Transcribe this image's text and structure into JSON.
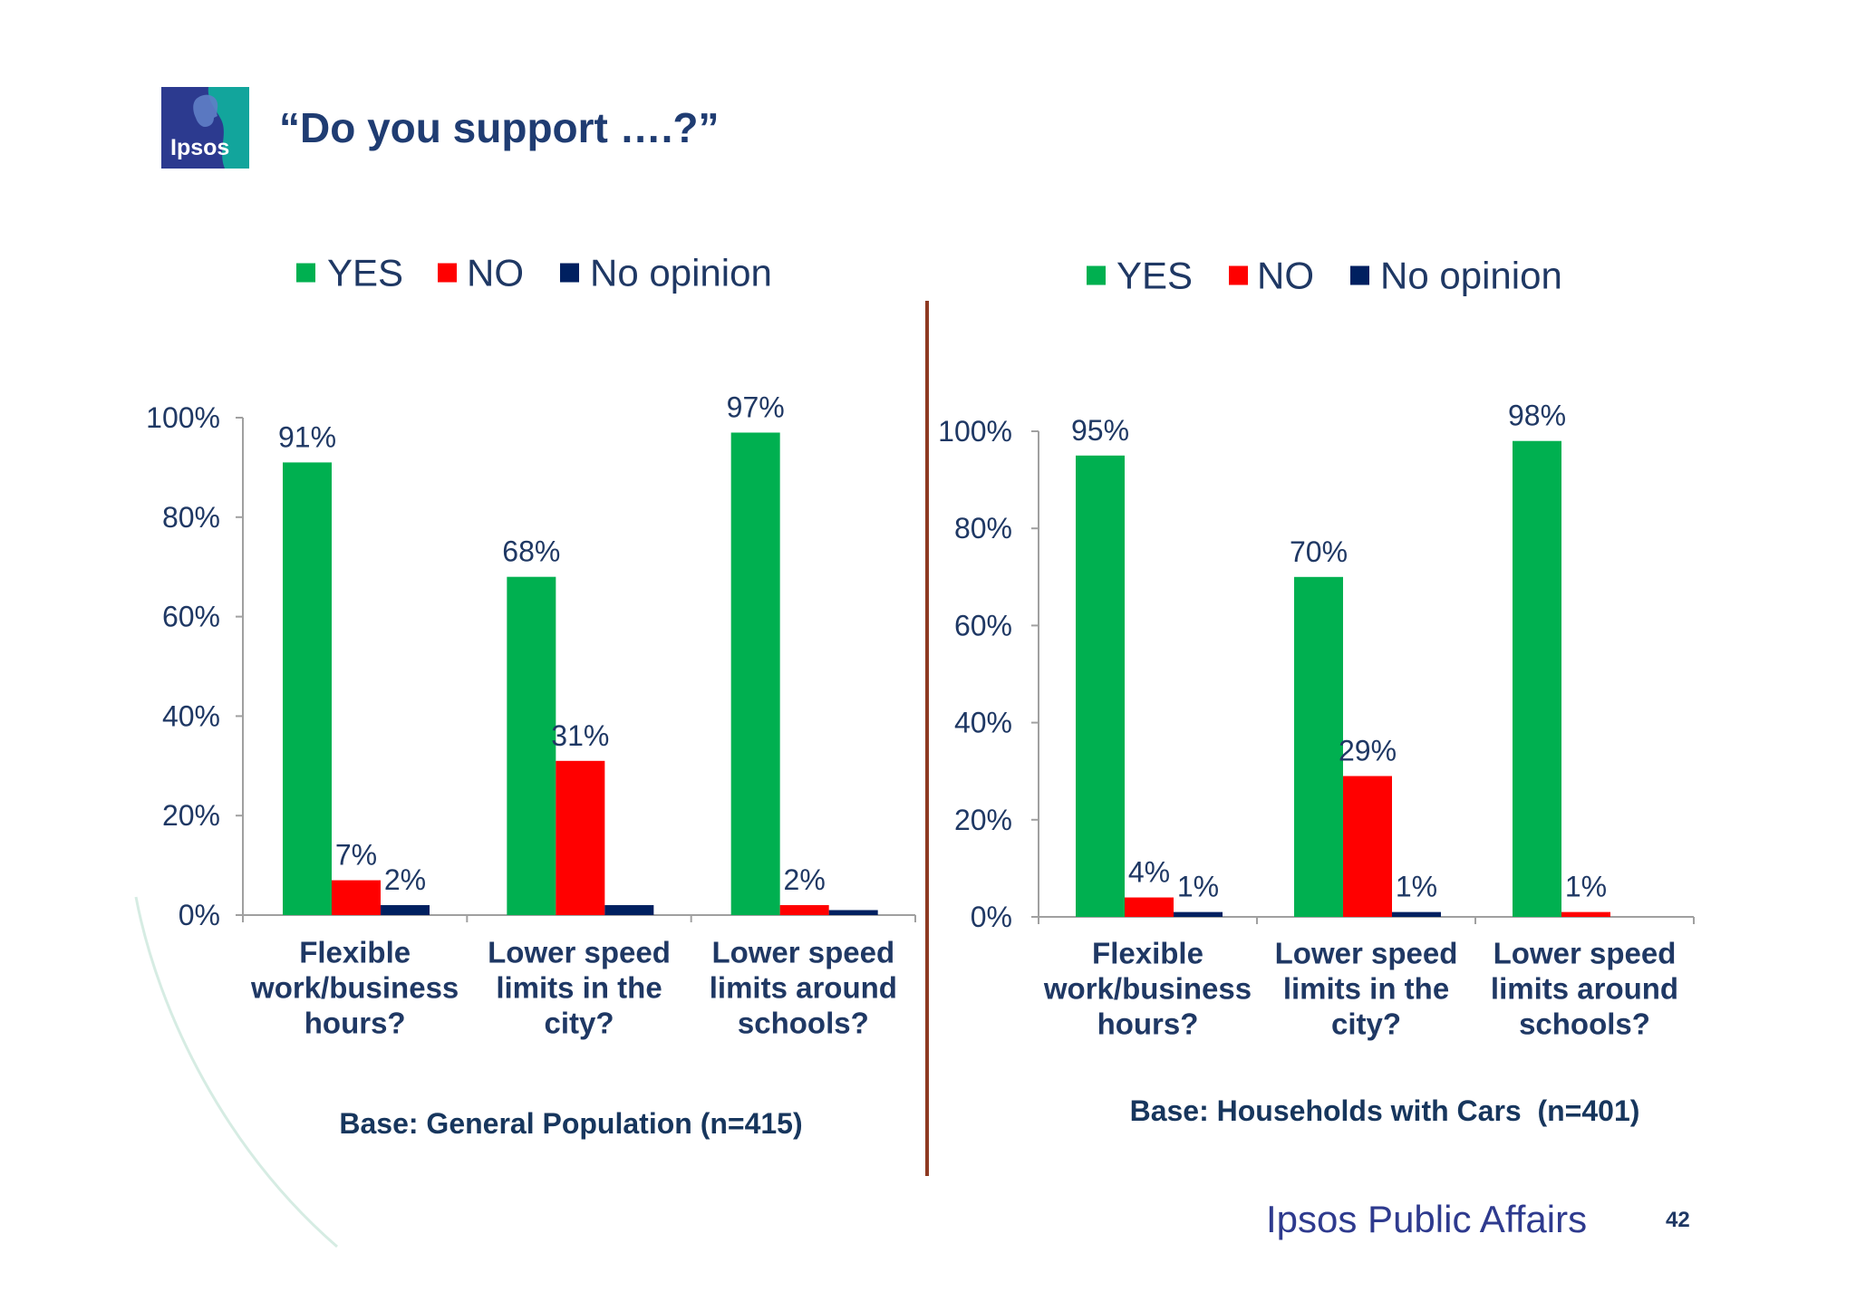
{
  "slide": {
    "title": "“Do you support ….?”",
    "logo_text": "Ipsos",
    "footer_brand": "Ipsos Public Affairs",
    "page_number": "42"
  },
  "colors": {
    "title": "#1f3c72",
    "text": "#1f3864",
    "axis": "#a0a0a0",
    "divider": "#8e3a22",
    "footer": "#2e3a8e",
    "logo_blue": "#2c3a8f",
    "logo_teal": "#12a59c"
  },
  "chart_data": [
    {
      "type": "bar",
      "categories": [
        [
          "Flexible",
          "work/business",
          "hours?"
        ],
        [
          "Lower speed",
          "limits in the",
          "city?"
        ],
        [
          "Lower speed",
          "limits around",
          "schools?"
        ]
      ],
      "series": [
        {
          "name": "YES",
          "color": "#00b050",
          "values": [
            91,
            68,
            97
          ],
          "labels": [
            "91%",
            "68%",
            "97%"
          ]
        },
        {
          "name": "NO",
          "color": "#ff0000",
          "values": [
            7,
            31,
            2
          ],
          "labels": [
            "7%",
            "31%",
            "2%"
          ]
        },
        {
          "name": "No opinion",
          "color": "#002060",
          "values": [
            2,
            2,
            1
          ],
          "labels": [
            "2%",
            null,
            null
          ]
        }
      ],
      "ylim": [
        0,
        100
      ],
      "yticks": [
        0,
        20,
        40,
        60,
        80,
        100
      ],
      "ytick_labels": [
        "0%",
        "20%",
        "40%",
        "60%",
        "80%",
        "100%"
      ],
      "legend": "top",
      "grid": false,
      "base_note": "Base: General Population (n=415)"
    },
    {
      "type": "bar",
      "categories": [
        [
          "Flexible",
          "work/business",
          "hours?"
        ],
        [
          "Lower speed",
          "limits in the",
          "city?"
        ],
        [
          "Lower speed",
          "limits around",
          "schools?"
        ]
      ],
      "series": [
        {
          "name": "YES",
          "color": "#00b050",
          "values": [
            95,
            70,
            98
          ],
          "labels": [
            "95%",
            "70%",
            "98%"
          ]
        },
        {
          "name": "NO",
          "color": "#ff0000",
          "values": [
            4,
            29,
            1
          ],
          "labels": [
            "4%",
            "29%",
            "1%"
          ]
        },
        {
          "name": "No opinion",
          "color": "#002060",
          "values": [
            1,
            1,
            0
          ],
          "labels": [
            "1%",
            "1%",
            null
          ]
        }
      ],
      "ylim": [
        0,
        100
      ],
      "yticks": [
        0,
        20,
        40,
        60,
        80,
        100
      ],
      "ytick_labels": [
        "0%",
        "20%",
        "40%",
        "60%",
        "80%",
        "100%"
      ],
      "legend": "top",
      "grid": false,
      "base_note": "Base: Households with Cars  (n=401)"
    }
  ]
}
